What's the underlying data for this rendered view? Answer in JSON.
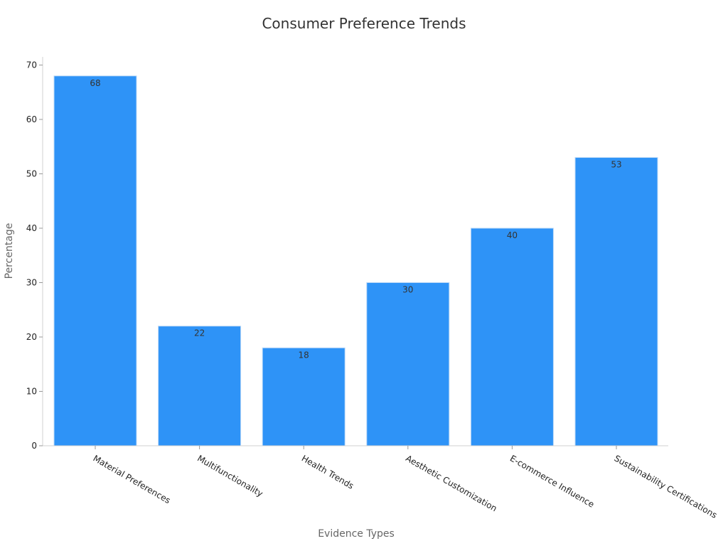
{
  "chart_data": {
    "type": "bar",
    "title": "Consumer Preference Trends",
    "xlabel": "Evidence Types",
    "ylabel": "Percentage",
    "categories": [
      "Material Preferences",
      "Multifunctionality",
      "Health Trends",
      "Aesthetic Customization",
      "E-commerce Influence",
      "Sustainability Certifications"
    ],
    "values": [
      68,
      22,
      18,
      30,
      40,
      53
    ],
    "ylim": [
      0,
      71.5
    ],
    "yticks": [
      0,
      10,
      20,
      30,
      40,
      50,
      60,
      70
    ],
    "bar_color": "#2e93f7",
    "grid": false,
    "legend": "none"
  }
}
